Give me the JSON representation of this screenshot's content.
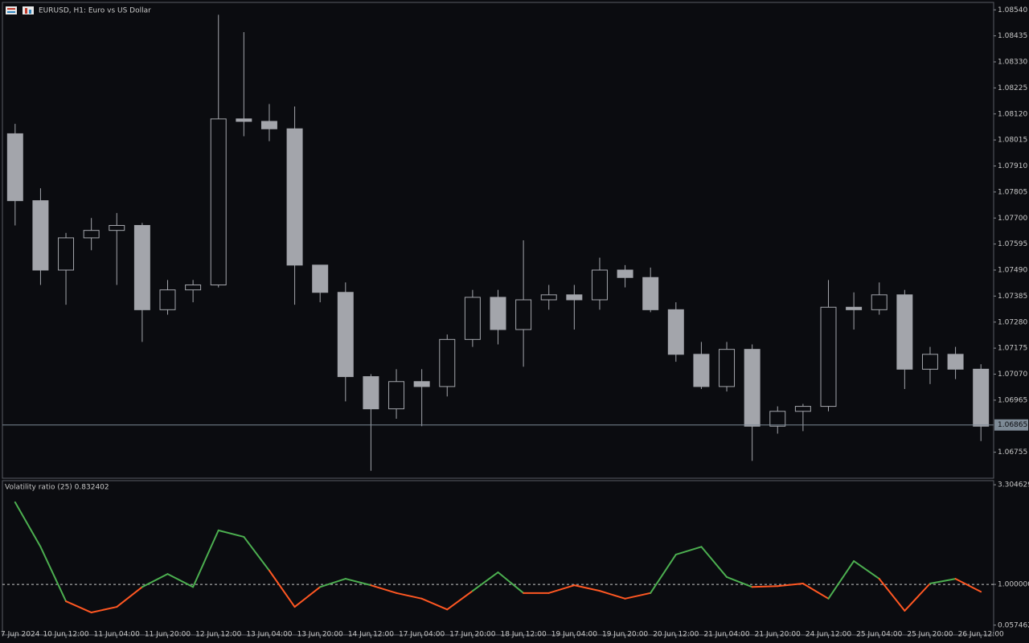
{
  "window": {
    "symbol_title": "EURUSD, H1:  Euro vs US Dollar"
  },
  "chart_data": [
    {
      "type": "candlestick",
      "color": "#a3a5ab",
      "categories": [
        "7 Jun 2024",
        null,
        "10 Jun 12:00",
        null,
        "11 Jun 04:00",
        null,
        "11 Jun 20:00",
        null,
        "12 Jun 12:00",
        null,
        "13 Jun 04:00",
        null,
        "13 Jun 20:00",
        null,
        "14 Jun 12:00",
        null,
        "17 Jun 04:00",
        null,
        "17 Jun 20:00",
        null,
        "18 Jun 12:00",
        null,
        "19 Jun 04:00",
        null,
        "19 Jun 20:00",
        null,
        "20 Jun 12:00",
        null,
        "21 Jun 04:00",
        null,
        "21 Jun 20:00",
        null,
        "24 Jun 12:00",
        null,
        "25 Jun 04:00",
        null,
        "25 Jun 20:00",
        null,
        "26 Jun 12:00"
      ],
      "open": [
        1.0804,
        1.0777,
        1.0749,
        1.0762,
        1.0765,
        1.0767,
        1.0733,
        1.0741,
        1.0743,
        1.081,
        1.0809,
        1.0806,
        1.0751,
        1.074,
        1.0706,
        1.0693,
        1.0704,
        1.0702,
        1.0721,
        1.0738,
        1.0725,
        1.0737,
        1.0739,
        1.0737,
        1.0749,
        1.0746,
        1.0733,
        1.0715,
        1.0702,
        1.0717,
        1.0686,
        1.0692,
        1.0694,
        1.0734,
        1.0733,
        1.0739,
        1.0709,
        1.0715,
        1.0709
      ],
      "high": [
        1.0808,
        1.0782,
        1.0764,
        1.077,
        1.0772,
        1.0768,
        1.0745,
        1.0745,
        1.0852,
        1.0845,
        1.0816,
        1.0815,
        1.0751,
        1.0744,
        1.0707,
        1.0709,
        1.0709,
        1.0723,
        1.0741,
        1.0741,
        1.0761,
        1.0743,
        1.0743,
        1.0754,
        1.0751,
        1.075,
        1.0736,
        1.072,
        1.072,
        1.0719,
        1.0694,
        1.0695,
        1.0745,
        1.074,
        1.0744,
        1.0741,
        1.0718,
        1.0718,
        1.0711
      ],
      "low": [
        1.0767,
        1.0743,
        1.0735,
        1.0757,
        1.0743,
        1.072,
        1.0731,
        1.0736,
        1.0742,
        1.0803,
        1.0801,
        1.0735,
        1.0736,
        1.0696,
        1.0668,
        1.0689,
        1.0686,
        1.0698,
        1.0718,
        1.0719,
        1.071,
        1.0733,
        1.0725,
        1.0733,
        1.0742,
        1.0732,
        1.0712,
        1.0701,
        1.07,
        1.0672,
        1.0683,
        1.0684,
        1.0692,
        1.0725,
        1.0731,
        1.0701,
        1.0703,
        1.0705,
        1.068
      ],
      "close": [
        1.0777,
        1.0749,
        1.0762,
        1.0765,
        1.0767,
        1.0733,
        1.0741,
        1.0743,
        1.081,
        1.0809,
        1.0806,
        1.0751,
        1.074,
        1.0706,
        1.0693,
        1.0704,
        1.0702,
        1.0721,
        1.0738,
        1.0725,
        1.0737,
        1.0739,
        1.0737,
        1.0749,
        1.0746,
        1.0733,
        1.0715,
        1.0702,
        1.0717,
        1.0686,
        1.0692,
        1.0694,
        1.0734,
        1.0733,
        1.0739,
        1.0709,
        1.0715,
        1.0709,
        1.0686
      ],
      "ylim": [
        1.0665,
        1.0857
      ],
      "yticks": [
        {
          "value": 1.0854,
          "label": "1.08540"
        },
        {
          "value": 1.08435,
          "label": "1.08435"
        },
        {
          "value": 1.0833,
          "label": "1.08330"
        },
        {
          "value": 1.08225,
          "label": "1.08225"
        },
        {
          "value": 1.0812,
          "label": "1.08120"
        },
        {
          "value": 1.08015,
          "label": "1.08015"
        },
        {
          "value": 1.0791,
          "label": "1.07910"
        },
        {
          "value": 1.07805,
          "label": "1.07805"
        },
        {
          "value": 1.077,
          "label": "1.07700"
        },
        {
          "value": 1.07595,
          "label": "1.07595"
        },
        {
          "value": 1.0749,
          "label": "1.07490"
        },
        {
          "value": 1.07385,
          "label": "1.07385"
        },
        {
          "value": 1.0728,
          "label": "1.07280"
        },
        {
          "value": 1.07175,
          "label": "1.07175"
        },
        {
          "value": 1.0707,
          "label": "1.07070"
        },
        {
          "value": 1.06965,
          "label": "1.06965"
        },
        {
          "value": 1.06755,
          "label": "1.06755"
        }
      ],
      "current_price": {
        "value": 1.06865,
        "label": "1.06865"
      }
    },
    {
      "type": "line",
      "title": "Volatility ratio (25) 0.832402",
      "values": [
        2.9,
        1.87,
        0.61,
        0.35,
        0.48,
        0.94,
        1.24,
        0.94,
        2.25,
        2.1,
        1.32,
        0.48,
        0.94,
        1.13,
        0.98,
        0.8,
        0.67,
        0.42,
        0.85,
        1.28,
        0.8,
        0.8,
        0.98,
        0.85,
        0.67,
        0.8,
        1.69,
        1.87,
        1.17,
        0.94,
        0.96,
        1.02,
        0.67,
        1.54,
        1.13,
        0.39,
        1.02,
        1.13,
        0.83
      ],
      "colors": {
        "above": "#4caf50",
        "below": "#ff5722"
      },
      "level": 1,
      "ylim": [
        -0.17,
        3.4
      ],
      "yticks": [
        {
          "value": 3.304629,
          "label": "3.304629"
        },
        {
          "value": 1,
          "label": "1.000000"
        },
        {
          "value": 0.057462,
          "label": "0.057462"
        }
      ]
    }
  ]
}
